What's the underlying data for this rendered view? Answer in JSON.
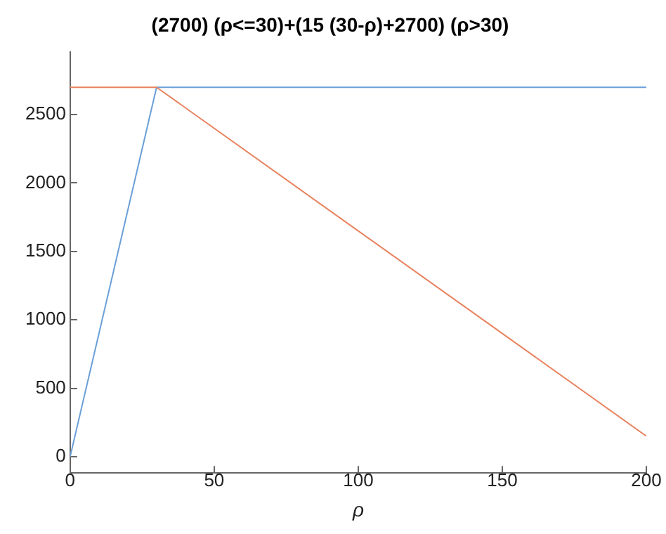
{
  "chart_data": {
    "type": "line",
    "title": "(2700) (ρ<=30)+(15 (30-ρ)+2700) (ρ>30)",
    "xlabel": "ρ",
    "series": [
      {
        "color": "#e8825e",
        "x": [
          0,
          30,
          200
        ],
        "values": [
          2700,
          2700,
          150
        ]
      },
      {
        "color": "#6a9fd8",
        "x": [
          0,
          30,
          200
        ],
        "values": [
          0,
          2700,
          2700
        ]
      }
    ],
    "xlim": [
      0,
      200
    ],
    "xticks": [
      0,
      50,
      100,
      150,
      200
    ],
    "ylim": [
      -120,
      2960
    ],
    "yticks": [
      0,
      500,
      1000,
      1500,
      2000,
      2500
    ],
    "grid": false,
    "legend": false,
    "marker": "none",
    "line_style": "solid"
  }
}
